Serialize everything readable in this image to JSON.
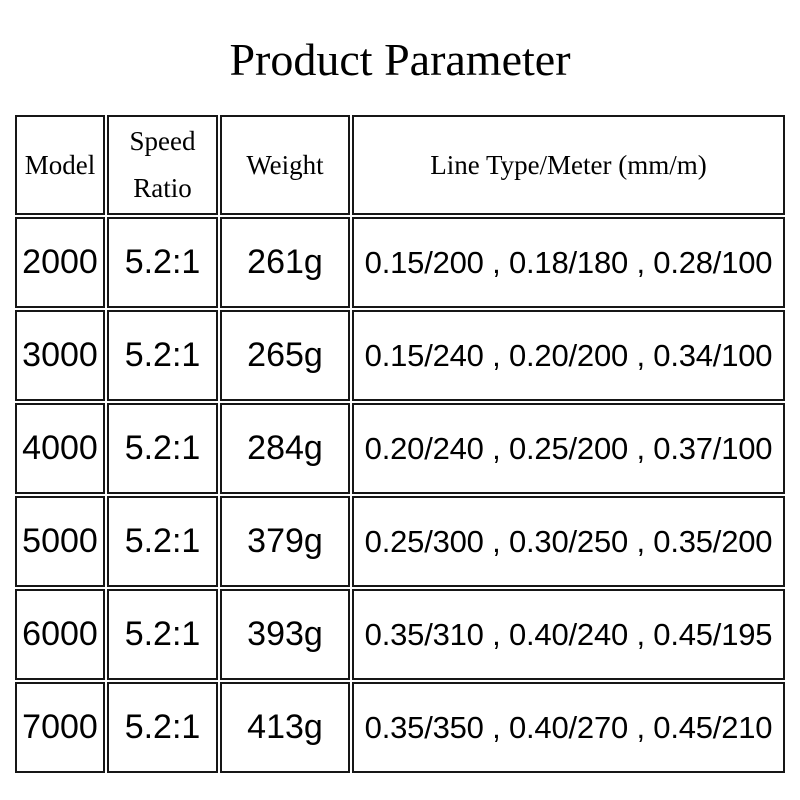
{
  "page": {
    "title": "Product Parameter",
    "background_color": "#ffffff",
    "text_color": "#000000",
    "border_color": "#161616"
  },
  "chart_data": {
    "type": "table",
    "title": "Product Parameter",
    "columns": [
      "Model",
      "Speed Ratio",
      "Weight",
      "Line Type/Meter (mm/m)"
    ],
    "rows": [
      [
        "2000",
        "5.2:1",
        "261g",
        "0.15/200 , 0.18/180 , 0.28/100"
      ],
      [
        "3000",
        "5.2:1",
        "265g",
        "0.15/240 , 0.20/200 , 0.34/100"
      ],
      [
        "4000",
        "5.2:1",
        "284g",
        "0.20/240 , 0.25/200 , 0.37/100"
      ],
      [
        "5000",
        "5.2:1",
        "379g",
        "0.25/300 , 0.30/250 , 0.35/200"
      ],
      [
        "6000",
        "5.2:1",
        "393g",
        "0.35/310 , 0.40/240 , 0.45/195"
      ],
      [
        "7000",
        "5.2:1",
        "413g",
        "0.35/350 , 0.40/270 , 0.45/210"
      ]
    ],
    "layout": {
      "grid": "double-line cell borders",
      "header_font": "serif",
      "body_font": "sans-serif"
    }
  }
}
